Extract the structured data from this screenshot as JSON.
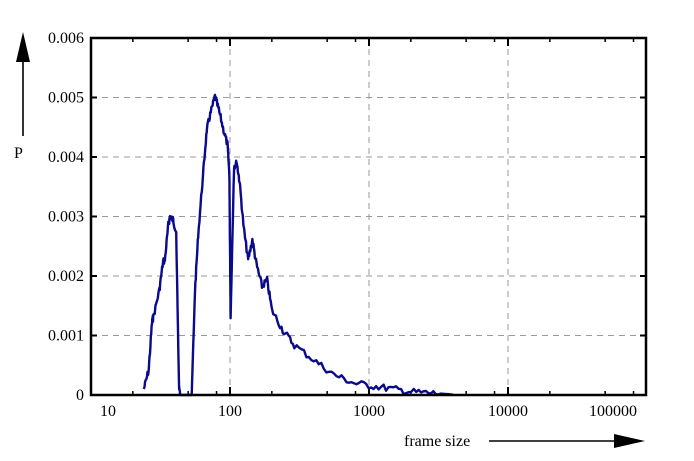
{
  "chart_data": {
    "type": "line",
    "title": "",
    "xlabel": "frame size",
    "ylabel": "P",
    "xscale": "log",
    "xlim": [
      10,
      150000
    ],
    "ylim": [
      0,
      0.006
    ],
    "grid": true,
    "legend": null,
    "x_ticks": [
      10,
      100,
      1000,
      10000,
      100000
    ],
    "x_tick_labels": [
      "10",
      "100",
      "1000",
      "10000",
      "100000"
    ],
    "y_ticks": [
      0,
      0.001,
      0.002,
      0.003,
      0.004,
      0.005,
      0.006
    ],
    "y_tick_labels": [
      "0",
      "0.001",
      "0.002",
      "0.003",
      "0.004",
      "0.005",
      "0.006"
    ],
    "line_color": "#0a0a8c",
    "series": [
      {
        "name": "P(frame size)",
        "x": [
          24,
          26,
          27.5,
          28,
          31,
          33,
          34,
          36,
          37,
          39,
          41,
          43,
          44,
          47,
          53,
          56,
          59,
          64,
          68,
          72,
          78,
          83,
          90,
          96,
          99,
          100,
          101,
          107,
          112,
          117,
          126,
          135,
          145,
          155,
          170,
          185,
          200,
          240,
          290,
          400,
          560,
          780,
          1080,
          1500,
          2100,
          2900,
          4000
        ],
        "y": [
          0.0001,
          0.00042,
          0.00123,
          0.0013,
          0.00176,
          0.00224,
          0.00227,
          0.00286,
          0.003,
          0.00294,
          0.00274,
          0.0001,
          0.0,
          0.0,
          0.0,
          0.00176,
          0.00269,
          0.0037,
          0.00445,
          0.00471,
          0.00502,
          0.00479,
          0.00445,
          0.0042,
          0.0037,
          0.00252,
          0.00129,
          0.00385,
          0.0039,
          0.0036,
          0.00277,
          0.00227,
          0.00261,
          0.00219,
          0.00183,
          0.00193,
          0.00143,
          0.00109,
          0.00084,
          0.00059,
          0.00034,
          0.0002,
          0.00015,
          0.0001,
          5e-05,
          3e-05,
          1e-05
        ]
      }
    ]
  }
}
